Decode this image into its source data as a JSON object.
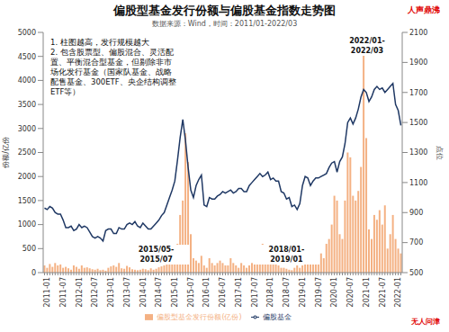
{
  "chart_data": {
    "type": "bar",
    "title": "偏股型基金发行份额与偏股基金指数走势图",
    "subtitle": "数据来源：Wind，时间：2011/01-2022/03",
    "notes": [
      "1. 柱图越高，发行规模越大",
      "2. 包含股票型、偏股混合、灵活配置、平衡混合型基金，但剔除非市场化发行基金（国家队基金、战略配售基金、300ETF、央企结构调整ETF等）"
    ],
    "period_labels": [
      "2015/05-2015/07",
      "2018/01-2019/01",
      "2022/01-2022/03"
    ],
    "corner_labels": [
      "人声鼎沸",
      "无人问津"
    ],
    "y_label": "份额/亿份",
    "y2_label": "点位",
    "categories": [
      "2011-01",
      null,
      null,
      null,
      null,
      null,
      "2011-07",
      null,
      null,
      null,
      null,
      null,
      "2012-01",
      null,
      null,
      null,
      null,
      null,
      "2012-07",
      null,
      null,
      null,
      null,
      null,
      "2013-01",
      null,
      null,
      null,
      null,
      null,
      "2013-07",
      null,
      null,
      null,
      null,
      null,
      "2014-01",
      null,
      null,
      null,
      null,
      null,
      "2014-07",
      null,
      null,
      null,
      null,
      null,
      "2015-01",
      null,
      null,
      null,
      null,
      null,
      "2015-07",
      null,
      null,
      null,
      null,
      null,
      "2016-01",
      null,
      null,
      null,
      null,
      null,
      "2016-07",
      null,
      null,
      null,
      null,
      null,
      "2017-01",
      null,
      null,
      null,
      null,
      null,
      "2017-07",
      null,
      null,
      null,
      null,
      null,
      "2018-01",
      null,
      null,
      null,
      null,
      null,
      "2018-07",
      null,
      null,
      null,
      null,
      null,
      "2019-01",
      null,
      null,
      null,
      null,
      null,
      "2019-07",
      null,
      null,
      null,
      null,
      null,
      "2020-01",
      null,
      null,
      null,
      null,
      null,
      "2020-07",
      null,
      null,
      null,
      null,
      null,
      "2021-01",
      null,
      null,
      null,
      null,
      null,
      "2021-07",
      null,
      null,
      null,
      null,
      null,
      "2022-01",
      null,
      null
    ],
    "series": [
      {
        "name": "偏股型基金发行份额(亿份)",
        "type": "bar",
        "color": "#f4b183",
        "values": [
          150,
          100,
          180,
          120,
          200,
          150,
          170,
          100,
          120,
          90,
          60,
          150,
          120,
          80,
          150,
          100,
          110,
          90,
          70,
          60,
          80,
          50,
          60,
          40,
          100,
          130,
          150,
          120,
          200,
          90,
          80,
          140,
          110,
          70,
          60,
          50,
          60,
          80,
          70,
          50,
          90,
          60,
          80,
          110,
          130,
          150,
          180,
          250,
          300,
          200,
          600,
          1200,
          1500,
          2900,
          2300,
          800,
          300,
          250,
          200,
          350,
          150,
          100,
          300,
          200,
          150,
          200,
          250,
          200,
          150,
          150,
          300,
          200,
          150,
          100,
          200,
          150,
          100,
          150,
          200,
          250,
          300,
          500,
          600,
          350,
          400,
          300,
          500,
          200,
          150,
          100,
          100,
          80,
          60,
          50,
          100,
          150,
          100,
          150,
          400,
          500,
          300,
          300,
          400,
          500,
          400,
          300,
          600,
          700,
          1000,
          1600,
          1500,
          800,
          700,
          1500,
          2500,
          2400,
          1600,
          1500,
          1700,
          2200,
          4600,
          2800,
          900,
          700,
          1200,
          1100,
          1300,
          1000,
          1400,
          500,
          800,
          1200,
          700,
          500,
          400
        ]
      },
      {
        "name": "偏股基金",
        "type": "line",
        "color": "#1f3864",
        "axis": "y2",
        "values": [
          930,
          920,
          940,
          930,
          900,
          890,
          890,
          850,
          800,
          800,
          810,
          780,
          790,
          820,
          800,
          810,
          800,
          770,
          740,
          730,
          740,
          730,
          710,
          780,
          790,
          790,
          760,
          760,
          800,
          790,
          790,
          820,
          830,
          820,
          840,
          810,
          800,
          830,
          810,
          790,
          790,
          810,
          830,
          850,
          880,
          900,
          950,
          1000,
          1050,
          1110,
          1250,
          1400,
          1520,
          1380,
          1200,
          1050,
          1000,
          1080,
          1120,
          1150,
          950,
          940,
          1000,
          990,
          990,
          1010,
          1020,
          1040,
          1030,
          1040,
          1050,
          1030,
          1040,
          1060,
          1060,
          1040,
          1040,
          1080,
          1100,
          1120,
          1140,
          1160,
          1140,
          1150,
          1170,
          1120,
          1130,
          1110,
          1110,
          1040,
          1030,
          990,
          1000,
          940,
          950,
          920,
          960,
          1080,
          1140,
          1130,
          1080,
          1110,
          1130,
          1130,
          1140,
          1150,
          1160,
          1200,
          1230,
          1240,
          1170,
          1240,
          1270,
          1360,
          1500,
          1530,
          1490,
          1530,
          1590,
          1670,
          1720,
          1700,
          1640,
          1670,
          1720,
          1740,
          1720,
          1730,
          1700,
          1720,
          1740,
          1760,
          1620,
          1580,
          1480
        ]
      }
    ],
    "ylim": [
      0,
      5000
    ],
    "yticks": [
      0,
      500,
      1000,
      1500,
      2000,
      2500,
      3000,
      3500,
      4000,
      4500,
      5000
    ],
    "y2lim": [
      500,
      2100
    ],
    "y2ticks": [
      500,
      700,
      900,
      1100,
      1300,
      1500,
      1700,
      1900,
      2100
    ],
    "grid": false,
    "legend": "bottom"
  }
}
